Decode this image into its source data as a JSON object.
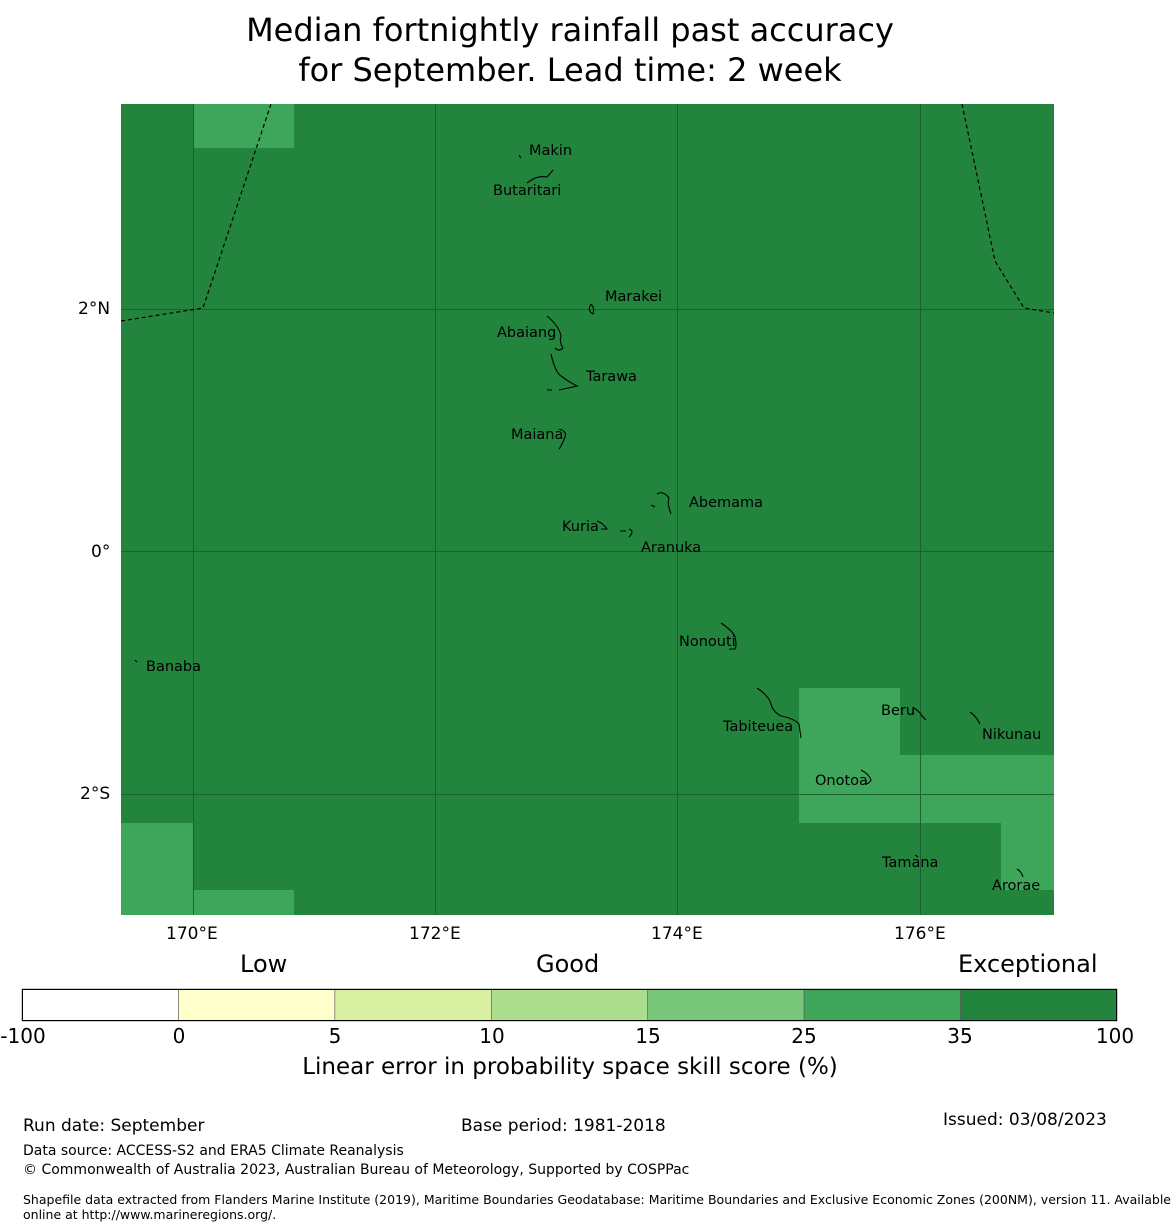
{
  "title": {
    "line1": "Median fortnightly rainfall past accuracy",
    "line2": "for September. Lead time: 2 week"
  },
  "colors": {
    "exceptional": "#23843e",
    "very_high": "#3ea65a",
    "grid": "#1a5e2c",
    "coast": "#000000"
  },
  "axes": {
    "lon_ticks": [
      "170°E",
      "172°E",
      "174°E",
      "176°E"
    ],
    "lat_ticks": [
      "2°N",
      "0°",
      "2°S"
    ]
  },
  "islands": {
    "makin": "Makin",
    "butaritari": "Butaritari",
    "marakei": "Marakei",
    "abaiang": "Abaiang",
    "tarawa": "Tarawa",
    "maiana": "Maiana",
    "abemama": "Abemama",
    "kuria": "Kuria",
    "aranuka": "Aranuka",
    "nonouti": "Nonouti",
    "banaba": "Banaba",
    "tabiteuea": "Tabiteuea",
    "beru": "Beru",
    "nikunau": "Nikunau",
    "onotoa": "Onotoa",
    "tamana": "Tamana",
    "arorae": "Arorae"
  },
  "legend": {
    "categories": {
      "low": "Low",
      "good": "Good",
      "exceptional": "Exceptional"
    },
    "ticks": [
      "-100",
      "0",
      "5",
      "10",
      "15",
      "25",
      "35",
      "100"
    ],
    "colors": [
      "#ffffff",
      "#ffffcc",
      "#d9f0a3",
      "#addd8e",
      "#78c679",
      "#3ea65a",
      "#23843e"
    ],
    "label": "Linear error in probability space skill score (%)"
  },
  "footer": {
    "run_date": "Run date: September",
    "base_period": "Base period: 1981-2018",
    "issued": "Issued: 03/08/2023",
    "data_source": "Data source: ACCESS-S2 and ERA5 Climate Reanalysis",
    "copyright": "© Commonwealth of Australia 2023, Australian Bureau of Meteorology, Supported by COSPPac",
    "shapefile_line1": "Shapefile data extracted from Flanders Marine Institute (2019), Maritime Boundaries Geodatabase: Maritime Boundaries and Exclusive Economic Zones (200NM), version 11. Available",
    "shapefile_line2": "online at http://www.marineregions.org/."
  }
}
